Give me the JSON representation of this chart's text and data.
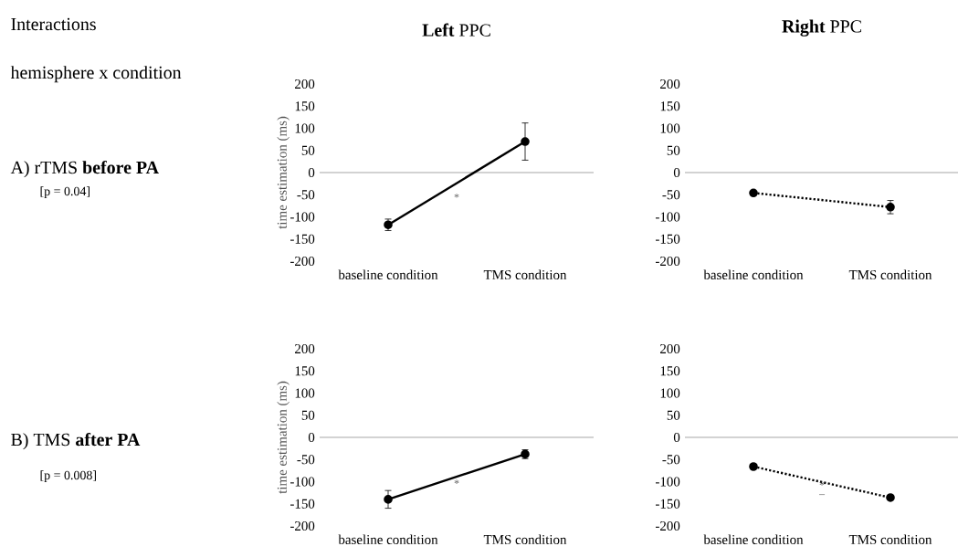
{
  "chart_data": [
    {
      "type": "other",
      "title": "Interactions",
      "subtitle": "hemisphere x condition",
      "annotations": [
        "A)  rTMS **before PA**",
        "[p = 0.04]",
        "B)  TMS **after PA**",
        "[p = 0.008]"
      ]
    },
    {
      "type": "line",
      "title": "**Left** PPC",
      "ylabel": "time estimation  (ms)",
      "categories": [
        "baseline condition",
        "TMS condition"
      ],
      "ylim": [
        -200,
        200
      ],
      "yticks": [
        -200,
        -150,
        -100,
        -50,
        0,
        50,
        100,
        150,
        200
      ],
      "marker": "circle",
      "line_style": "solid",
      "grid": false,
      "ref_lines": [
        {
          "axis": "y",
          "value": 0,
          "color": "#a6a6a6"
        }
      ],
      "annotations": [
        "*"
      ],
      "series": [
        {
          "color": "#000000",
          "values": [
            -118,
            70
          ],
          "errors": [
            13,
            42
          ]
        }
      ]
    },
    {
      "type": "line",
      "title": "**Right** PPC",
      "categories": [
        "baseline condition",
        "TMS condition"
      ],
      "ylim": [
        -200,
        200
      ],
      "yticks": [
        -200,
        -150,
        -100,
        -50,
        0,
        50,
        100,
        150,
        200
      ],
      "marker": "circle",
      "line_style": "dotted",
      "grid": false,
      "ref_lines": [
        {
          "axis": "y",
          "value": 0,
          "color": "#a6a6a6"
        }
      ],
      "series": [
        {
          "color": "#000000",
          "values": [
            -46,
            -78
          ],
          "errors": [
            null,
            15
          ]
        }
      ]
    },
    {
      "type": "line",
      "ylabel": "time estimation  (ms)",
      "categories": [
        "baseline condition",
        "TMS condition"
      ],
      "ylim": [
        -200,
        200
      ],
      "yticks": [
        -200,
        -150,
        -100,
        -50,
        0,
        50,
        100,
        150,
        200
      ],
      "marker": "circle",
      "line_style": "solid",
      "grid": false,
      "ref_lines": [
        {
          "axis": "y",
          "value": 0,
          "color": "#a6a6a6"
        }
      ],
      "annotations": [
        "*"
      ],
      "series": [
        {
          "color": "#000000",
          "values": [
            -140,
            -38
          ],
          "errors": [
            20,
            10
          ]
        }
      ]
    },
    {
      "type": "line",
      "categories": [
        "baseline condition",
        "TMS condition"
      ],
      "ylim": [
        -200,
        200
      ],
      "yticks": [
        -200,
        -150,
        -100,
        -50,
        0,
        50,
        100,
        150,
        200
      ],
      "marker": "circle",
      "line_style": "dotted",
      "grid": false,
      "ref_lines": [
        {
          "axis": "y",
          "value": 0,
          "color": "#a6a6a6"
        }
      ],
      "annotations": [
        "*",
        "–"
      ],
      "series": [
        {
          "color": "#000000",
          "values": [
            -66,
            -136
          ],
          "errors": [
            null,
            null
          ]
        }
      ]
    }
  ]
}
